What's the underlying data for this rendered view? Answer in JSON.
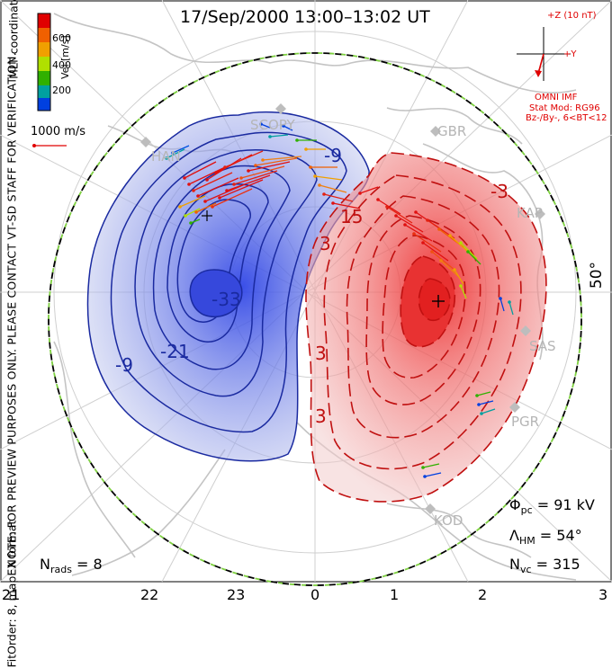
{
  "title": "17/Sep/2000 13:00–13:02 UT",
  "note": "NOTE: FOR PREVIEW PURPOSES ONLY. PLEASE CONTACT VT-SD STAFF FOR VERIFICATION.",
  "fit_order": "FitOrder: 8, mapEX format",
  "coord_label": "MLT coordinates",
  "colorbar": {
    "label": "Vel [m/s]",
    "ticks": [
      "600",
      "400",
      "200"
    ],
    "colors": [
      "#e00000",
      "#f06000",
      "#f0a000",
      "#b0e000",
      "#30b000",
      "#00a0a0",
      "#0040e0"
    ]
  },
  "velocity_scale": "1000 m/s",
  "imf": {
    "bz_label": "+Z (10 nT)",
    "by_label": "+Y",
    "source": "OMNI IMF",
    "stat_mod": "Stat Mod: RG96",
    "condition": "Bz-/By-, 6<BT<12"
  },
  "stats": {
    "phi_pc": "Φpc = 91 kV",
    "phi_pc_value": "91 kV",
    "lambda_hm": "54°",
    "n_vc": "315",
    "n_rads": "8"
  },
  "latitude_label": "50°",
  "mlt_ticks": [
    "21",
    "22",
    "23",
    "0",
    "1",
    "2",
    "3"
  ],
  "stations": [
    "SCOPY",
    "HAN",
    "GBR",
    "KAP",
    "SAS",
    "PGR",
    "KOD"
  ],
  "contour_labels_negative": [
    "-9",
    "-21",
    "-33",
    "-9"
  ],
  "contour_labels_positive": [
    "3",
    "15",
    "3",
    "3",
    "-3"
  ],
  "colors": {
    "negative_fill": "#3a4fe0",
    "positive_fill": "#e83030",
    "negative_line": "#1a2aa0",
    "positive_line": "#c01010",
    "land": "#c8c8c8",
    "grid": "#c8c8c8",
    "boundary_green": "#7ed040"
  }
}
